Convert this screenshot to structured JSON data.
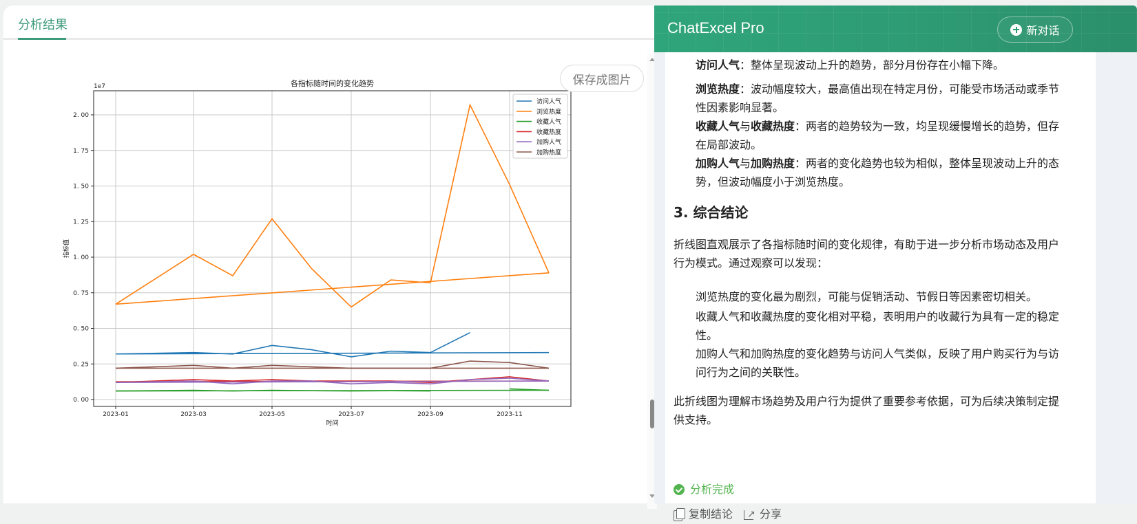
{
  "left_panel": {
    "tab_label": "分析结果",
    "save_button": "保存成图片"
  },
  "right_panel": {
    "app_title": "ChatExcel Pro",
    "new_chat_button": "新对话",
    "bullets_top": [
      {
        "bold": "访问人气",
        "text": "：整体呈现波动上升的趋势，部分月份存在小幅下降。"
      },
      {
        "bold": "浏览热度",
        "text": "：波动幅度较大，最高值出现在特定月份，可能受市场活动或季节性因素影响显著。"
      },
      {
        "bold": "收藏人气",
        "mid": "与",
        "bold2": "收藏热度",
        "text": "：两者的趋势较为一致，均呈现缓慢增长的趋势，但存在局部波动。"
      },
      {
        "bold": "加购人气",
        "mid": "与",
        "bold2": "加购热度",
        "text": "：两者的变化趋势也较为相似，整体呈现波动上升的态势，但波动幅度小于浏览热度。"
      }
    ],
    "section_heading": "3. 综合结论",
    "intro_paragraph": "折线图直观展示了各指标随时间的变化规律，有助于进一步分析市场动态及用户行为模式。通过观察可以发现：",
    "findings": [
      "浏览热度的变化最为剧烈，可能与促销活动、节假日等因素密切相关。",
      "收藏人气和收藏热度的变化相对平稳，表明用户的收藏行为具有一定的稳定性。",
      "加购人气和加购热度的变化趋势与访问人气类似，反映了用户购买行为与访问行为之间的关联性。"
    ],
    "closing_paragraph": "此折线图为理解市场趋势及用户行为提供了重要参考依据，可为后续决策制定提供支持。",
    "status_text": "分析完成",
    "copy_button": "复制结论",
    "share_button": "分享"
  },
  "chart_data": {
    "type": "line",
    "title": "各指标随时间的变化趋势",
    "xlabel": "时间",
    "ylabel": "指标值",
    "y_scale_label": "1e7",
    "ylim": [
      -0.05,
      2.17
    ],
    "yticks": [
      "0.00",
      "0.25",
      "0.50",
      "0.75",
      "1.00",
      "1.25",
      "1.50",
      "1.75",
      "2.00"
    ],
    "xticks": [
      "2023-01",
      "2023-03",
      "2023-05",
      "2023-07",
      "2023-09",
      "2023-11"
    ],
    "grid": true,
    "legend_position": "upper right",
    "x": [
      "2023-01",
      "2023-03",
      "2023-04",
      "2023-05",
      "2023-06",
      "2023-07",
      "2023-08",
      "2023-09",
      "2023-10",
      "2023-11",
      "2023-12"
    ],
    "series": [
      {
        "name": "访问人气",
        "color": "#1f77b4",
        "values": [
          0.32,
          0.33,
          0.32,
          0.38,
          0.35,
          0.3,
          0.34,
          0.33,
          0.47,
          null,
          0.33
        ],
        "baseline": [
          0.32,
          0.33
        ]
      },
      {
        "name": "浏览热度",
        "color": "#ff7f0e",
        "values": [
          0.67,
          1.02,
          0.87,
          1.27,
          0.92,
          0.65,
          0.84,
          0.82,
          2.07,
          1.51,
          0.89
        ],
        "baseline": [
          0.67,
          0.89
        ]
      },
      {
        "name": "收藏人气",
        "color": "#2ca02c",
        "values": [
          0.06,
          0.065,
          0.06,
          0.065,
          0.062,
          0.06,
          0.062,
          0.06,
          null,
          0.075,
          0.065
        ],
        "baseline": [
          0.06,
          0.065
        ]
      },
      {
        "name": "收藏热度",
        "color": "#d62728",
        "values": [
          0.12,
          0.14,
          0.13,
          0.14,
          0.13,
          0.13,
          0.13,
          0.12,
          0.14,
          0.16,
          0.13
        ],
        "baseline": [
          0.125,
          0.13
        ]
      },
      {
        "name": "加购人气",
        "color": "#9467bd",
        "values": [
          0.12,
          0.13,
          0.11,
          0.13,
          0.13,
          0.11,
          0.12,
          0.11,
          0.14,
          0.15,
          0.13
        ],
        "baseline": [
          0.12,
          0.13
        ]
      },
      {
        "name": "加购热度",
        "color": "#8c564b",
        "values": [
          0.22,
          0.24,
          0.22,
          0.24,
          0.23,
          0.22,
          0.22,
          0.22,
          0.27,
          0.26,
          0.22
        ],
        "baseline": [
          0.22,
          0.22
        ]
      }
    ]
  }
}
